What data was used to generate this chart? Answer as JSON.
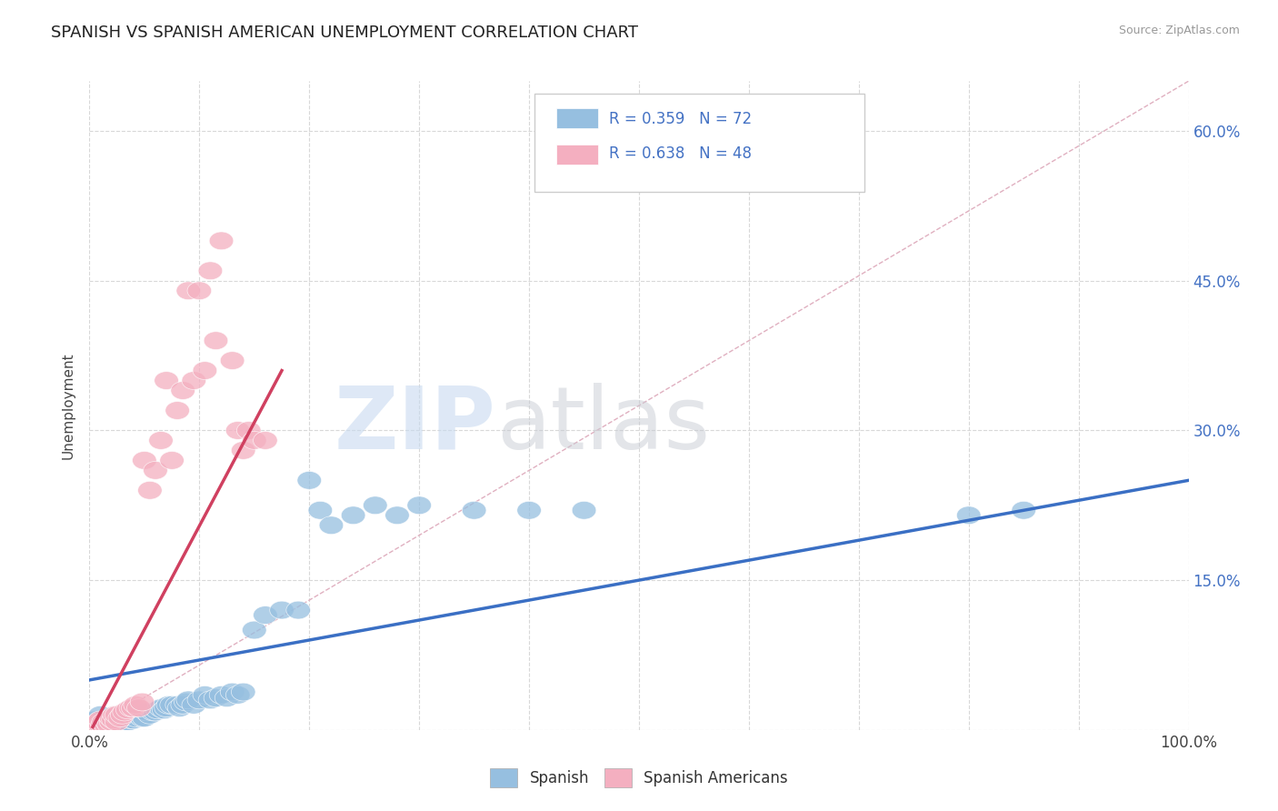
{
  "title": "SPANISH VS SPANISH AMERICAN UNEMPLOYMENT CORRELATION CHART",
  "source_text": "Source: ZipAtlas.com",
  "ylabel": "Unemployment",
  "xlim": [
    0,
    1.0
  ],
  "ylim": [
    0,
    0.65
  ],
  "xticks": [
    0.0,
    0.1,
    0.2,
    0.3,
    0.4,
    0.5,
    0.6,
    0.7,
    0.8,
    0.9,
    1.0
  ],
  "xticklabels": [
    "0.0%",
    "",
    "",
    "",
    "",
    "",
    "",
    "",
    "",
    "",
    "100.0%"
  ],
  "yticks": [
    0.0,
    0.15,
    0.3,
    0.45,
    0.6
  ],
  "right_yticklabels": [
    "",
    "15.0%",
    "30.0%",
    "45.0%",
    "60.0%"
  ],
  "blue_R": "0.359",
  "blue_N": "72",
  "pink_R": "0.638",
  "pink_N": "48",
  "blue_color": "#96bfe0",
  "pink_color": "#f4afc0",
  "blue_line_color": "#3a6fc4",
  "pink_line_color": "#d04060",
  "ref_line_color": "#e0b0c0",
  "grid_color": "#d8d8d8",
  "title_color": "#222222",
  "tick_color": "#444444",
  "right_tick_color": "#4472c4",
  "blue_scatter_x": [
    0.005,
    0.008,
    0.01,
    0.01,
    0.012,
    0.013,
    0.015,
    0.015,
    0.016,
    0.018,
    0.02,
    0.02,
    0.022,
    0.023,
    0.025,
    0.025,
    0.027,
    0.028,
    0.03,
    0.03,
    0.032,
    0.033,
    0.035,
    0.035,
    0.038,
    0.04,
    0.04,
    0.042,
    0.045,
    0.048,
    0.05,
    0.052,
    0.055,
    0.058,
    0.06,
    0.062,
    0.065,
    0.068,
    0.07,
    0.072,
    0.075,
    0.08,
    0.082,
    0.085,
    0.088,
    0.09,
    0.095,
    0.1,
    0.105,
    0.11,
    0.115,
    0.12,
    0.125,
    0.13,
    0.135,
    0.14,
    0.15,
    0.16,
    0.175,
    0.19,
    0.2,
    0.21,
    0.22,
    0.24,
    0.26,
    0.28,
    0.3,
    0.35,
    0.4,
    0.45,
    0.8,
    0.85
  ],
  "blue_scatter_y": [
    0.01,
    0.005,
    0.008,
    0.015,
    0.005,
    0.008,
    0.01,
    0.005,
    0.008,
    0.005,
    0.01,
    0.005,
    0.008,
    0.01,
    0.005,
    0.012,
    0.008,
    0.005,
    0.01,
    0.015,
    0.008,
    0.012,
    0.008,
    0.015,
    0.01,
    0.01,
    0.015,
    0.012,
    0.015,
    0.012,
    0.012,
    0.018,
    0.015,
    0.018,
    0.018,
    0.02,
    0.022,
    0.02,
    0.022,
    0.025,
    0.025,
    0.025,
    0.022,
    0.025,
    0.028,
    0.03,
    0.025,
    0.03,
    0.035,
    0.03,
    0.032,
    0.035,
    0.032,
    0.038,
    0.035,
    0.038,
    0.1,
    0.115,
    0.12,
    0.12,
    0.25,
    0.22,
    0.205,
    0.215,
    0.225,
    0.215,
    0.225,
    0.22,
    0.22,
    0.22,
    0.215,
    0.22
  ],
  "pink_scatter_x": [
    0.003,
    0.005,
    0.007,
    0.008,
    0.01,
    0.01,
    0.012,
    0.013,
    0.015,
    0.016,
    0.018,
    0.018,
    0.02,
    0.02,
    0.022,
    0.023,
    0.025,
    0.025,
    0.028,
    0.03,
    0.032,
    0.035,
    0.038,
    0.04,
    0.042,
    0.045,
    0.048,
    0.05,
    0.055,
    0.06,
    0.065,
    0.07,
    0.075,
    0.08,
    0.085,
    0.09,
    0.095,
    0.1,
    0.105,
    0.11,
    0.115,
    0.12,
    0.13,
    0.135,
    0.14,
    0.145,
    0.15,
    0.16
  ],
  "pink_scatter_y": [
    0.005,
    0.005,
    0.005,
    0.008,
    0.005,
    0.01,
    0.005,
    0.008,
    0.005,
    0.008,
    0.01,
    0.005,
    0.008,
    0.012,
    0.01,
    0.015,
    0.008,
    0.015,
    0.012,
    0.015,
    0.018,
    0.02,
    0.022,
    0.022,
    0.025,
    0.022,
    0.028,
    0.27,
    0.24,
    0.26,
    0.29,
    0.35,
    0.27,
    0.32,
    0.34,
    0.44,
    0.35,
    0.44,
    0.36,
    0.46,
    0.39,
    0.49,
    0.37,
    0.3,
    0.28,
    0.3,
    0.29,
    0.29
  ],
  "blue_line_x0": 0.0,
  "blue_line_x1": 1.0,
  "blue_line_y0": 0.05,
  "blue_line_y1": 0.25,
  "pink_line_x0": 0.003,
  "pink_line_x1": 0.175,
  "pink_line_y0": 0.003,
  "pink_line_y1": 0.36,
  "ref_line_x0": 0.0,
  "ref_line_x1": 1.0,
  "ref_line_y0": 0.0,
  "ref_line_y1": 0.65
}
